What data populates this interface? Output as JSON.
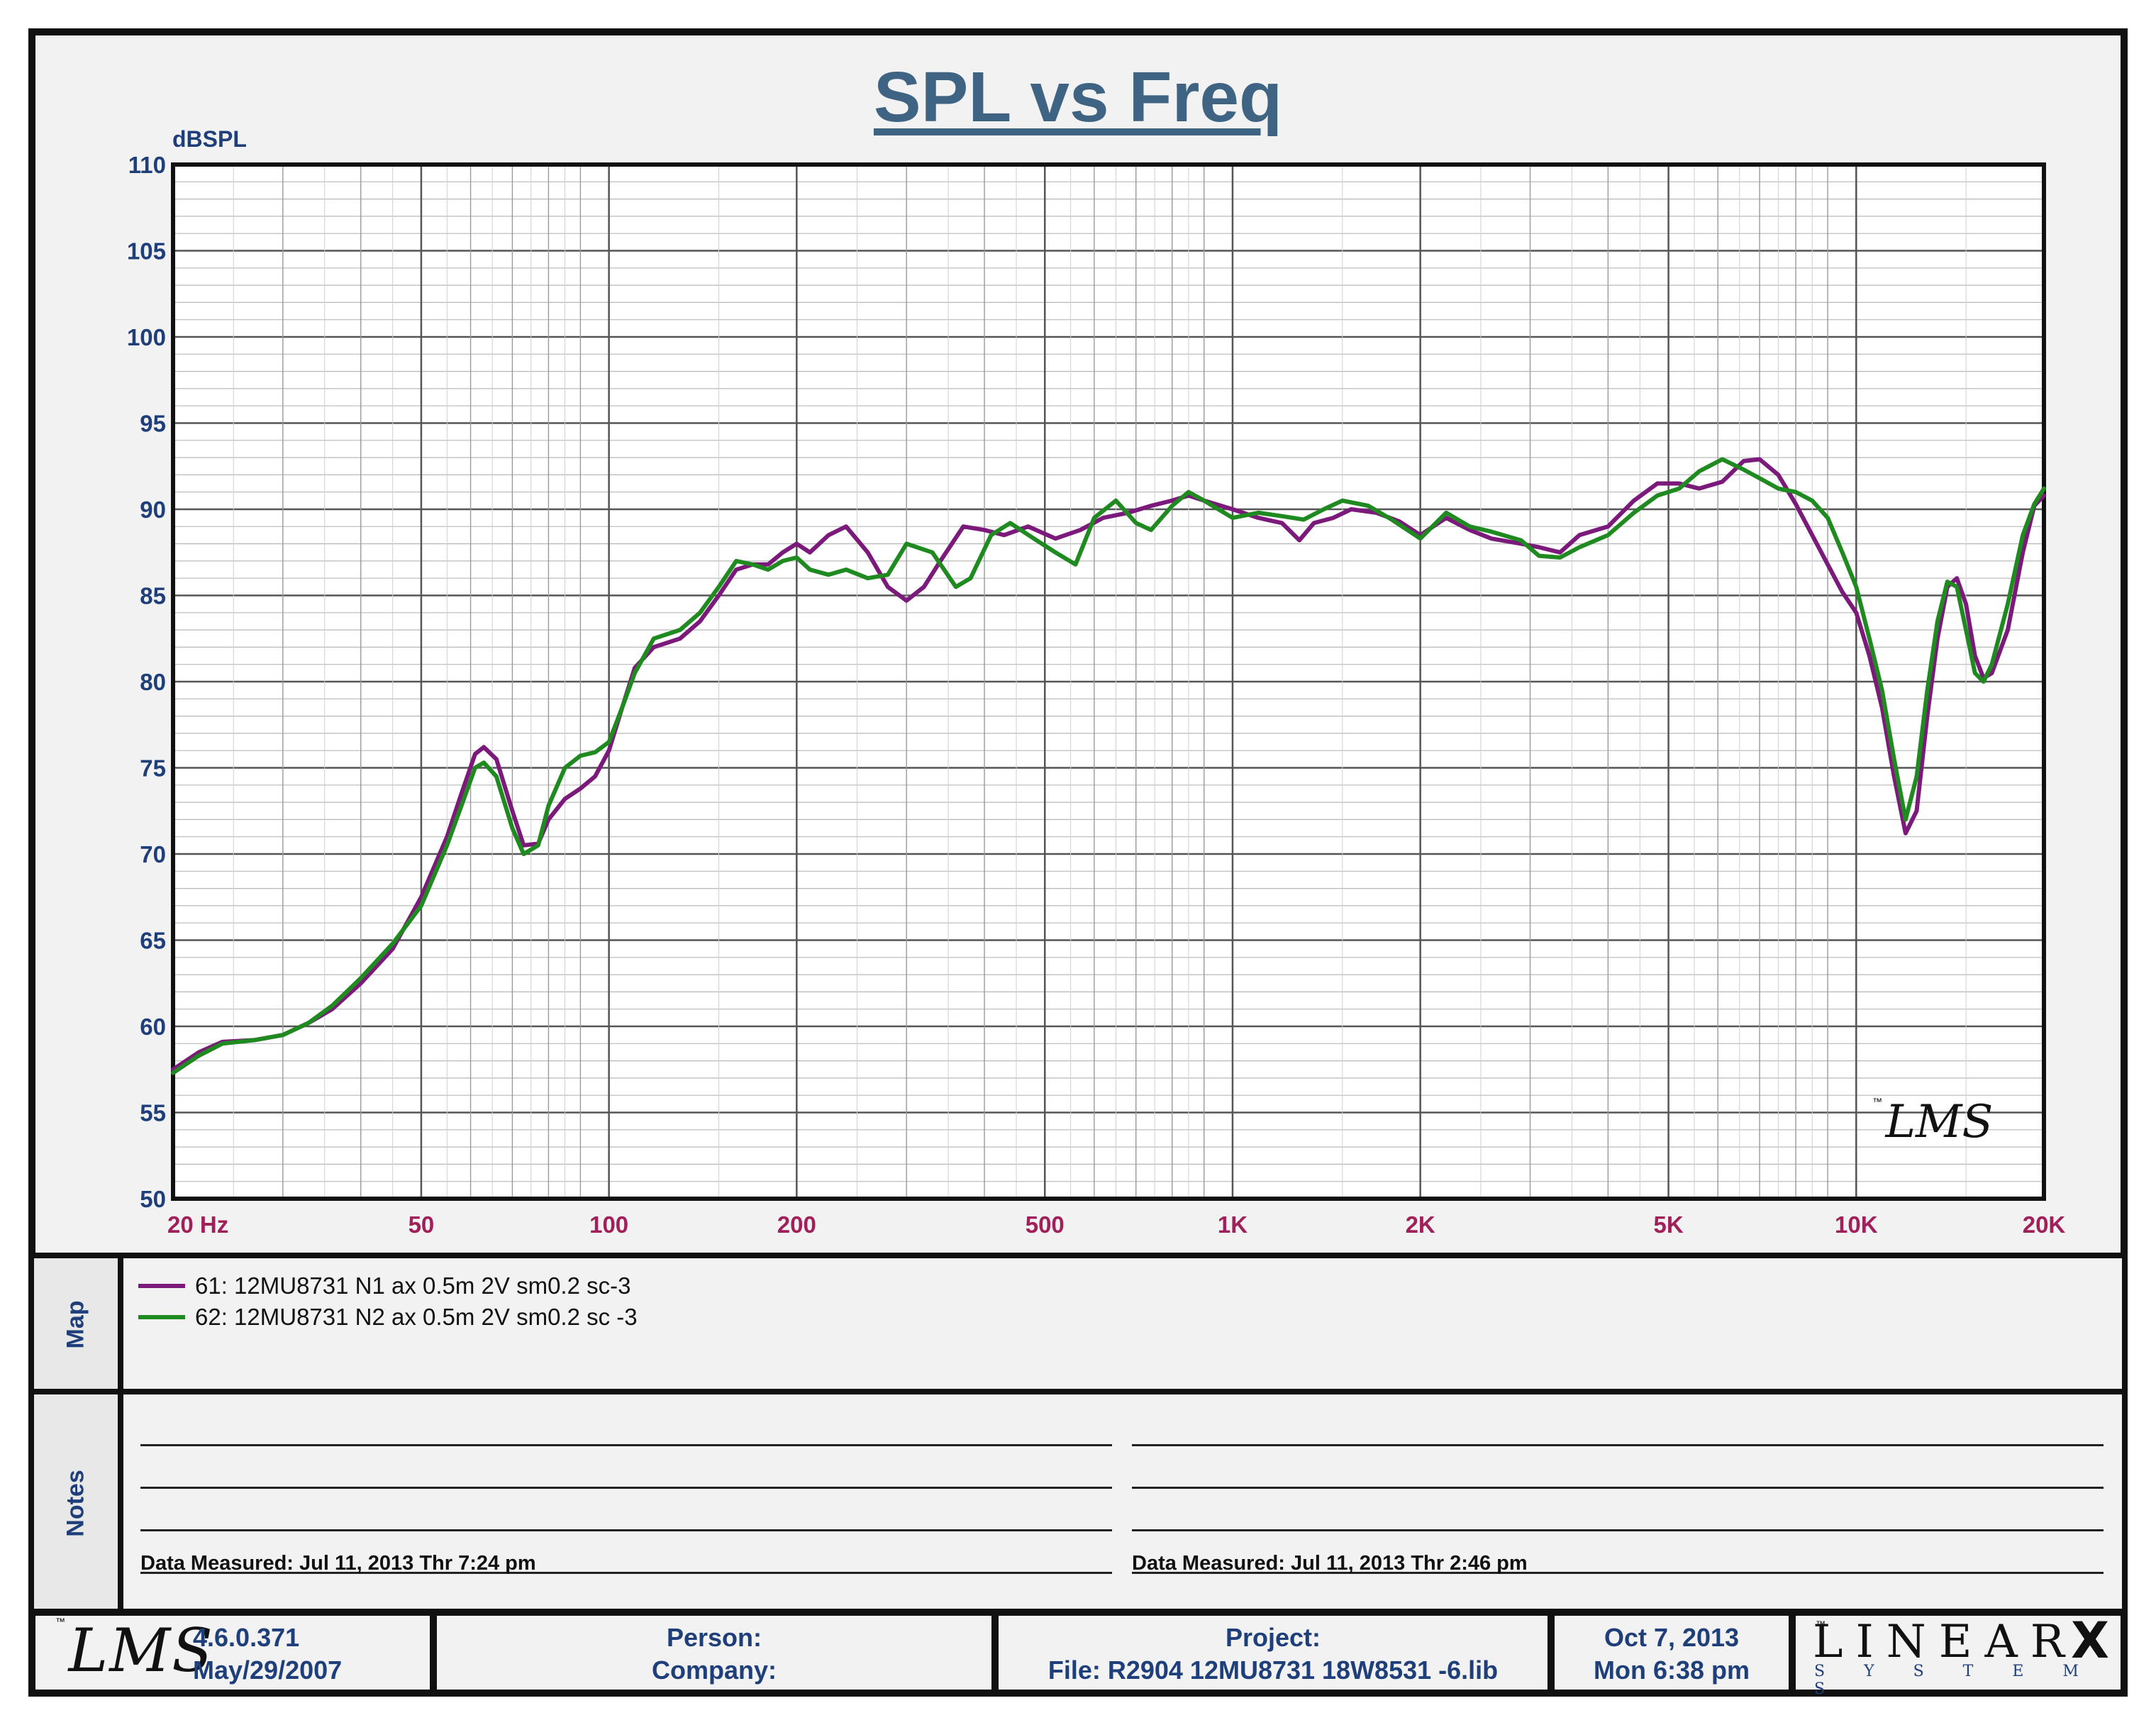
{
  "title": "SPL vs Freq",
  "chart": {
    "ylabel": "dBSPL",
    "yticks": [
      "110",
      "105",
      "100",
      "95",
      "90",
      "85",
      "80",
      "75",
      "70",
      "65",
      "60",
      "55",
      "50"
    ],
    "xticks": [
      {
        "f": 20,
        "label": "20  Hz"
      },
      {
        "f": 50,
        "label": "50"
      },
      {
        "f": 100,
        "label": "100"
      },
      {
        "f": 200,
        "label": "200"
      },
      {
        "f": 500,
        "label": "500"
      },
      {
        "f": 1000,
        "label": "1K"
      },
      {
        "f": 2000,
        "label": "2K"
      },
      {
        "f": 5000,
        "label": "5K"
      },
      {
        "f": 10000,
        "label": "10K"
      },
      {
        "f": 20000,
        "label": "20K"
      }
    ],
    "watermark": "LMS"
  },
  "chart_data": {
    "type": "line",
    "title": "SPL vs Freq",
    "xlabel": "Hz",
    "ylabel": "dBSPL",
    "xscale": "log",
    "xlim": [
      20,
      20000
    ],
    "ylim": [
      50,
      110
    ],
    "grid": true,
    "series": [
      {
        "name": "61: 12MU8731 N1 ax 0.5m 2V sm0.2 sc-3",
        "color": "#7b1a7b",
        "points": [
          [
            20,
            57.5
          ],
          [
            22,
            58.5
          ],
          [
            24,
            59.1
          ],
          [
            27,
            59.2
          ],
          [
            30,
            59.5
          ],
          [
            33,
            60.2
          ],
          [
            36,
            61
          ],
          [
            40,
            62.5
          ],
          [
            45,
            64.5
          ],
          [
            50,
            67.5
          ],
          [
            55,
            71
          ],
          [
            58,
            73.5
          ],
          [
            61,
            75.8
          ],
          [
            63,
            76.2
          ],
          [
            66,
            75.5
          ],
          [
            70,
            72.5
          ],
          [
            73,
            70.5
          ],
          [
            77,
            70.6
          ],
          [
            80,
            72
          ],
          [
            85,
            73.2
          ],
          [
            90,
            73.8
          ],
          [
            95,
            74.5
          ],
          [
            100,
            76
          ],
          [
            105,
            78.5
          ],
          [
            110,
            80.8
          ],
          [
            118,
            82
          ],
          [
            130,
            82.5
          ],
          [
            140,
            83.5
          ],
          [
            150,
            85
          ],
          [
            160,
            86.5
          ],
          [
            170,
            86.8
          ],
          [
            180,
            86.8
          ],
          [
            190,
            87.5
          ],
          [
            200,
            88
          ],
          [
            210,
            87.5
          ],
          [
            225,
            88.5
          ],
          [
            240,
            89
          ],
          [
            260,
            87.5
          ],
          [
            280,
            85.5
          ],
          [
            300,
            84.7
          ],
          [
            320,
            85.5
          ],
          [
            340,
            87
          ],
          [
            370,
            89
          ],
          [
            400,
            88.8
          ],
          [
            430,
            88.5
          ],
          [
            470,
            89
          ],
          [
            520,
            88.3
          ],
          [
            570,
            88.8
          ],
          [
            620,
            89.5
          ],
          [
            680,
            89.8
          ],
          [
            740,
            90.2
          ],
          [
            800,
            90.5
          ],
          [
            850,
            90.8
          ],
          [
            900,
            90.5
          ],
          [
            1000,
            90
          ],
          [
            1100,
            89.5
          ],
          [
            1200,
            89.2
          ],
          [
            1280,
            88.2
          ],
          [
            1350,
            89.2
          ],
          [
            1450,
            89.5
          ],
          [
            1550,
            90
          ],
          [
            1700,
            89.8
          ],
          [
            1850,
            89.3
          ],
          [
            2000,
            88.5
          ],
          [
            2200,
            89.5
          ],
          [
            2400,
            88.8
          ],
          [
            2600,
            88.3
          ],
          [
            2900,
            88
          ],
          [
            3100,
            87.8
          ],
          [
            3350,
            87.5
          ],
          [
            3600,
            88.5
          ],
          [
            4000,
            89
          ],
          [
            4400,
            90.5
          ],
          [
            4800,
            91.5
          ],
          [
            5200,
            91.5
          ],
          [
            5600,
            91.2
          ],
          [
            6100,
            91.6
          ],
          [
            6600,
            92.8
          ],
          [
            7000,
            92.9
          ],
          [
            7500,
            92
          ],
          [
            8000,
            90.3
          ],
          [
            8500,
            88.5
          ],
          [
            9000,
            86.8
          ],
          [
            9500,
            85.2
          ],
          [
            10000,
            84
          ],
          [
            10500,
            81.5
          ],
          [
            11000,
            78.5
          ],
          [
            11500,
            74.5
          ],
          [
            12000,
            71.2
          ],
          [
            12500,
            72.5
          ],
          [
            13000,
            78
          ],
          [
            13500,
            82.5
          ],
          [
            14000,
            85.5
          ],
          [
            14500,
            86
          ],
          [
            15000,
            84.5
          ],
          [
            15500,
            81.5
          ],
          [
            16000,
            80.2
          ],
          [
            16500,
            80.5
          ],
          [
            17500,
            83
          ],
          [
            18500,
            87.5
          ],
          [
            19300,
            90.2
          ],
          [
            20000,
            90.8
          ]
        ]
      },
      {
        "name": "62: 12MU8731 N2 ax 0.5m 2V sm0.2 sc -3",
        "color": "#1f8a1f",
        "points": [
          [
            20,
            57.3
          ],
          [
            22,
            58.3
          ],
          [
            24,
            59
          ],
          [
            27,
            59.2
          ],
          [
            30,
            59.5
          ],
          [
            33,
            60.2
          ],
          [
            36,
            61.2
          ],
          [
            40,
            62.8
          ],
          [
            45,
            64.8
          ],
          [
            50,
            67
          ],
          [
            55,
            70.5
          ],
          [
            58,
            72.8
          ],
          [
            61,
            75
          ],
          [
            63,
            75.3
          ],
          [
            66,
            74.5
          ],
          [
            70,
            71.5
          ],
          [
            73,
            70
          ],
          [
            77,
            70.5
          ],
          [
            80,
            72.8
          ],
          [
            85,
            75
          ],
          [
            90,
            75.7
          ],
          [
            95,
            75.9
          ],
          [
            100,
            76.5
          ],
          [
            105,
            78.5
          ],
          [
            110,
            80.5
          ],
          [
            118,
            82.5
          ],
          [
            130,
            83
          ],
          [
            140,
            84
          ],
          [
            150,
            85.5
          ],
          [
            160,
            87
          ],
          [
            170,
            86.8
          ],
          [
            180,
            86.5
          ],
          [
            190,
            87
          ],
          [
            200,
            87.2
          ],
          [
            210,
            86.5
          ],
          [
            225,
            86.2
          ],
          [
            240,
            86.5
          ],
          [
            260,
            86
          ],
          [
            280,
            86.2
          ],
          [
            300,
            88
          ],
          [
            330,
            87.5
          ],
          [
            360,
            85.5
          ],
          [
            380,
            86
          ],
          [
            410,
            88.5
          ],
          [
            440,
            89.2
          ],
          [
            480,
            88.3
          ],
          [
            520,
            87.5
          ],
          [
            560,
            86.8
          ],
          [
            600,
            89.5
          ],
          [
            650,
            90.5
          ],
          [
            700,
            89.2
          ],
          [
            740,
            88.8
          ],
          [
            800,
            90.2
          ],
          [
            850,
            91
          ],
          [
            900,
            90.5
          ],
          [
            1000,
            89.5
          ],
          [
            1100,
            89.8
          ],
          [
            1200,
            89.6
          ],
          [
            1300,
            89.4
          ],
          [
            1400,
            90
          ],
          [
            1500,
            90.5
          ],
          [
            1650,
            90.2
          ],
          [
            1800,
            89.4
          ],
          [
            2000,
            88.3
          ],
          [
            2200,
            89.8
          ],
          [
            2400,
            89
          ],
          [
            2600,
            88.7
          ],
          [
            2900,
            88.2
          ],
          [
            3100,
            87.3
          ],
          [
            3350,
            87.2
          ],
          [
            3600,
            87.8
          ],
          [
            4000,
            88.5
          ],
          [
            4400,
            89.8
          ],
          [
            4800,
            90.8
          ],
          [
            5200,
            91.2
          ],
          [
            5600,
            92.2
          ],
          [
            6100,
            92.9
          ],
          [
            6600,
            92.3
          ],
          [
            7000,
            91.8
          ],
          [
            7500,
            91.2
          ],
          [
            8000,
            91
          ],
          [
            8500,
            90.5
          ],
          [
            9000,
            89.5
          ],
          [
            9500,
            87.5
          ],
          [
            10000,
            85.5
          ],
          [
            10500,
            82.5
          ],
          [
            11000,
            79.5
          ],
          [
            11500,
            75.5
          ],
          [
            12000,
            72
          ],
          [
            12500,
            74.5
          ],
          [
            13000,
            79.5
          ],
          [
            13500,
            83.5
          ],
          [
            14000,
            85.8
          ],
          [
            14500,
            85.5
          ],
          [
            15000,
            83
          ],
          [
            15500,
            80.5
          ],
          [
            16000,
            80
          ],
          [
            16500,
            81
          ],
          [
            17500,
            84.5
          ],
          [
            18500,
            88.5
          ],
          [
            19300,
            90.3
          ],
          [
            20000,
            91.2
          ]
        ]
      }
    ]
  },
  "legend": {
    "section_label": "Map",
    "items": [
      {
        "label": "61: 12MU8731 N1 ax 0.5m 2V sm0.2 sc-3",
        "color": "#7b1a7b"
      },
      {
        "label": "62: 12MU8731 N2 ax 0.5m 2V sm0.2 sc -3",
        "color": "#1f8a1f"
      }
    ]
  },
  "notes": {
    "section_label": "Notes",
    "left_measured": "Data Measured: Jul 11, 2013  Thr  7:24 pm",
    "right_measured": "Data Measured: Jul 11, 2013  Thr  2:46 pm"
  },
  "footer": {
    "logo": "LMS",
    "version": "4.6.0.371",
    "version_date": "May/29/2007",
    "person_label": "Person:",
    "company_label": "Company:",
    "project_label": "Project:",
    "file_label": "File: R2904 12MU8731 18W8531 -6.lib",
    "date": "Oct  7, 2013",
    "time": "Mon  6:38 pm",
    "brand": "LINEAR",
    "brand_x": "X",
    "brand_sub": "S Y S T E M S"
  }
}
